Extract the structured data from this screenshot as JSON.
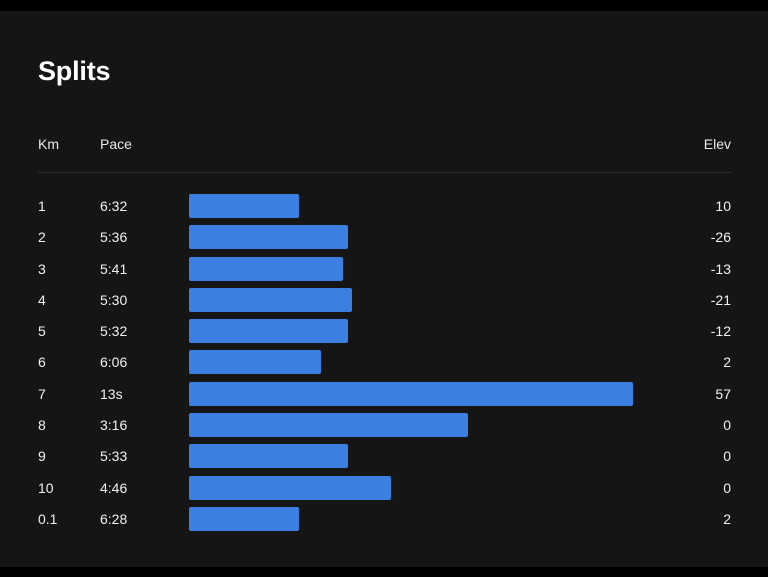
{
  "title": "Splits",
  "columns": {
    "km": "Km",
    "pace": "Pace",
    "elev": "Elev"
  },
  "colors": {
    "background": "#151515",
    "bar": "#3b7fe0",
    "text": "#ffffff"
  },
  "splits": [
    {
      "km": "1",
      "pace": "6:32",
      "elev": "10",
      "bar_fraction": 0.248
    },
    {
      "km": "2",
      "pace": "5:36",
      "elev": "-26",
      "bar_fraction": 0.359
    },
    {
      "km": "3",
      "pace": "5:41",
      "elev": "-13",
      "bar_fraction": 0.347
    },
    {
      "km": "4",
      "pace": "5:30",
      "elev": "-21",
      "bar_fraction": 0.368
    },
    {
      "km": "5",
      "pace": "5:32",
      "elev": "-12",
      "bar_fraction": 0.359
    },
    {
      "km": "6",
      "pace": "6:06",
      "elev": "2",
      "bar_fraction": 0.297
    },
    {
      "km": "7",
      "pace": "13s",
      "elev": "57",
      "bar_fraction": 1.0
    },
    {
      "km": "8",
      "pace": "3:16",
      "elev": "0",
      "bar_fraction": 0.628
    },
    {
      "km": "9",
      "pace": "5:33",
      "elev": "0",
      "bar_fraction": 0.359
    },
    {
      "km": "10",
      "pace": "4:46",
      "elev": "0",
      "bar_fraction": 0.456
    },
    {
      "km": "0.1",
      "pace": "6:28",
      "elev": "2",
      "bar_fraction": 0.248
    }
  ]
}
